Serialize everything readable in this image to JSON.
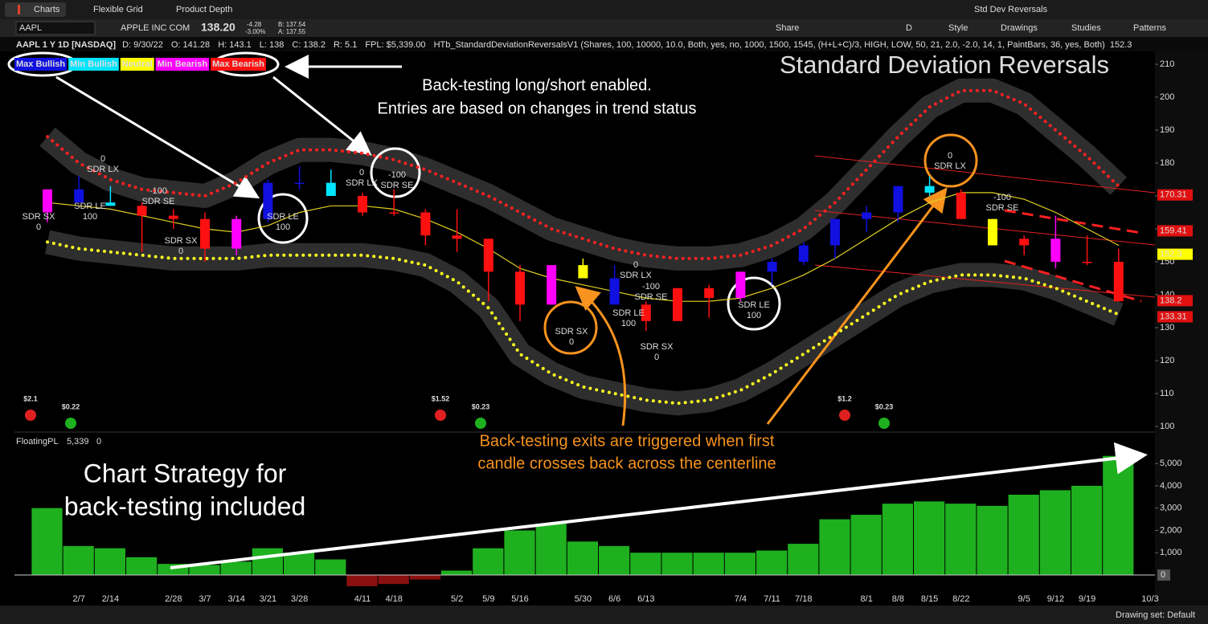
{
  "toolbar": {
    "tabs": [
      "Charts",
      "Flexible Grid",
      "Product Depth"
    ],
    "setup": "Std Dev Reversals",
    "symbol": "AAPL",
    "company": "APPLE INC COM",
    "last": "138.20",
    "change": "-4.28",
    "change_pct": "-3.00%",
    "bid": "B: 137.54",
    "ask": "A: 137.55",
    "aggregation": "D",
    "buttons": [
      "Share",
      "Style",
      "Drawings",
      "Studies",
      "Patterns"
    ]
  },
  "info": {
    "symbol": "AAPL 1 Y 1D [NASDAQ]",
    "fields": [
      "D: 9/30/22",
      "O: 141.28",
      "H: 143.1",
      "L: 138",
      "C: 138.2",
      "R: 5.1",
      "FPL: $5,339.00"
    ],
    "study": "HTb_StandardDeviationReversalsV1 (Shares, 100, 10000, 10.0, Both, yes, no, 1000, 1500, 1545, (H+L+C)/3, HIGH, LOW, 50, 21, 2.0, -2.0, 14, 1, PaintBars, 36, yes, Both)",
    "study_value": "152.3"
  },
  "legend": [
    {
      "name": "Max Bullish",
      "color": "#1010e0"
    },
    {
      "name": "Min Bullish",
      "color": "#00e5ff"
    },
    {
      "name": "Neutral",
      "color": "#ffff00"
    },
    {
      "name": "Min Bearish",
      "color": "#ff00ff"
    },
    {
      "name": "Max Bearish",
      "color": "#ff1010"
    }
  ],
  "annotations": {
    "title": "Standard Deviation Reversals",
    "entries": [
      "Back-testing long/short enabled.",
      "Entries are based on changes in trend status"
    ],
    "exits": [
      "Back-testing exits are triggered when first",
      "candle crosses back across the centerline"
    ],
    "strategy": [
      "Chart Strategy for",
      "back-testing included"
    ]
  },
  "signals": [
    {
      "lines": [
        "SDR SX",
        "0"
      ],
      "color": "#ffff40"
    },
    {
      "lines": [
        "0",
        "SDR LX"
      ],
      "color": "#ffff40"
    },
    {
      "lines": [
        "SDR LE",
        "100"
      ],
      "color": "#3050ff"
    },
    {
      "lines": [
        "-100",
        "SDR SE"
      ],
      "color": "#ff3030"
    },
    {
      "lines": [
        "SDR SX",
        "0"
      ],
      "color": "#ffff40"
    },
    {
      "lines": [
        "SDR LE",
        "100"
      ],
      "color": "#3050ff"
    },
    {
      "lines": [
        "0",
        "SDR LX"
      ],
      "color": "#ffff40"
    },
    {
      "lines": [
        "-100",
        "SDR SE"
      ],
      "color": "#ff3030"
    },
    {
      "lines": [
        "SDR SX",
        "0"
      ],
      "color": "#ffff40"
    },
    {
      "lines": [
        "0",
        "SDR LX"
      ],
      "color": "#ffff40"
    },
    {
      "lines": [
        "-100",
        "SDR SE"
      ],
      "color": "#ff3030"
    },
    {
      "lines": [
        "SDR LE",
        "100"
      ],
      "color": "#3050ff"
    },
    {
      "lines": [
        "SDR SX",
        "0"
      ],
      "color": "#ffff40"
    },
    {
      "lines": [
        "SDR LE",
        "100"
      ],
      "color": "#3050ff"
    },
    {
      "lines": [
        "0",
        "SDR LX"
      ],
      "color": "#ffff40"
    },
    {
      "lines": [
        "-100",
        "SDR SE"
      ],
      "color": "#ff3030"
    }
  ],
  "badges": [
    "$2.1",
    "$0.22",
    "$1.52",
    "$0.23",
    "$1.2",
    "$0.23"
  ],
  "chart_data": [
    {
      "type": "candlestick",
      "categories": [
        null,
        "2/7",
        "2/14",
        null,
        "2/28",
        "3/7",
        "3/14",
        "3/21",
        "3/28",
        null,
        "4/11",
        "4/18",
        null,
        "5/2",
        "5/9",
        "5/16",
        null,
        "5/30",
        "6/6",
        "6/13",
        null,
        null,
        "7/4",
        "7/11",
        "7/18",
        null,
        "8/1",
        "8/8",
        "8/15",
        "8/22",
        null,
        "9/5",
        "9/12",
        "9/19",
        null,
        "10/3"
      ],
      "open": [
        165,
        172,
        168,
        167,
        164,
        163,
        154,
        163,
        174,
        174,
        170,
        165,
        165,
        158,
        157,
        147,
        137,
        149,
        145,
        137,
        132,
        142,
        139,
        147,
        150,
        155,
        163,
        165,
        173,
        171,
        163,
        155,
        157,
        150,
        150,
        null
      ],
      "high": [
        172,
        176,
        173,
        168,
        166,
        165,
        164,
        175,
        179,
        178,
        171,
        172,
        166,
        166,
        157,
        149,
        149,
        151,
        149,
        138,
        142,
        143,
        147,
        151,
        156,
        163,
        167,
        173,
        176,
        172,
        163,
        158,
        164,
        158,
        154,
        null
      ],
      "low": [
        162,
        168,
        167,
        153,
        160,
        150,
        152,
        162,
        172,
        170,
        164,
        164,
        155,
        153,
        138,
        132,
        137,
        145,
        137,
        129,
        132,
        133,
        138,
        143,
        149,
        151,
        159,
        162,
        170,
        163,
        155,
        152,
        148,
        149,
        138,
        null
      ],
      "close": [
        172,
        168,
        167,
        164,
        163,
        154,
        163,
        174,
        174,
        170,
        165,
        165,
        158,
        157,
        147,
        137,
        149,
        145,
        137,
        132,
        142,
        139,
        147,
        150,
        155,
        163,
        165,
        173,
        171,
        163,
        155,
        157,
        150,
        150,
        138,
        null
      ],
      "candle_colors": [
        "#ff00ff",
        "#1010e0",
        "#00e5ff",
        "#ff1010",
        "#ff1010",
        "#ff1010",
        "#ff00ff",
        "#1010e0",
        "#1010e0",
        "#00e5ff",
        "#ff1010",
        "#ff1010",
        "#ff1010",
        "#ff1010",
        "#ff1010",
        "#ff1010",
        "#ff00ff",
        "#ffff00",
        "#1010e0",
        "#ff1010",
        "#ff1010",
        "#ff1010",
        "#ff00ff",
        "#1010e0",
        "#1010e0",
        "#1010e0",
        "#1010e0",
        "#1010e0",
        "#00e5ff",
        "#ff1010",
        "#ffff00",
        "#ff1010",
        "#ff00ff",
        "#ff1010",
        "#ff1010",
        null
      ],
      "series": [
        {
          "name": "upper",
          "color": "#ff2020",
          "values": [
            188,
            180,
            175,
            172,
            171,
            170,
            174,
            180,
            184,
            184,
            183,
            181,
            178,
            174,
            170,
            165,
            160,
            157,
            154,
            152,
            151,
            151,
            152,
            155,
            160,
            168,
            178,
            188,
            197,
            202,
            202,
            198,
            190,
            182,
            173,
            null
          ]
        },
        {
          "name": "lower",
          "color": "#ffff20",
          "values": [
            156,
            154,
            153,
            152,
            151,
            151,
            151,
            152,
            152,
            152,
            152,
            151,
            149,
            144,
            136,
            122,
            116,
            112,
            110,
            108,
            107,
            108,
            111,
            116,
            122,
            128,
            134,
            140,
            144,
            146,
            146,
            145,
            142,
            138,
            134,
            null
          ]
        },
        {
          "name": "mid",
          "color": "#e0d020",
          "values": [
            168,
            167,
            166,
            164,
            162,
            160,
            159,
            161,
            165,
            167,
            167,
            166,
            163,
            159,
            154,
            148,
            145,
            143,
            141,
            139,
            138,
            138,
            139,
            142,
            146,
            151,
            157,
            163,
            168,
            171,
            171,
            169,
            165,
            160,
            155,
            null
          ]
        }
      ],
      "price_tags": [
        {
          "value": 170.31,
          "color": "#e01010"
        },
        {
          "value": 159.41,
          "color": "#e01010"
        },
        {
          "value": 152.3,
          "color": "#ffff00"
        },
        {
          "value": 138.2,
          "color": "#e01010"
        },
        {
          "value": 133.31,
          "color": "#e01010"
        }
      ],
      "ylim": [
        98,
        215
      ],
      "yticks": [
        100,
        110,
        120,
        130,
        140,
        150,
        160,
        170,
        180,
        190,
        200,
        210
      ]
    },
    {
      "type": "bar",
      "name": "FloatingPL",
      "value_label": "5,339",
      "zero_tag": "0",
      "color": "#1fb01f",
      "negative_color": "#8b1010",
      "values": [
        3000,
        1300,
        1200,
        800,
        500,
        450,
        600,
        1200,
        1000,
        700,
        -500,
        -400,
        -200,
        200,
        1200,
        2000,
        2300,
        1500,
        1300,
        1000,
        1000,
        1000,
        1000,
        1100,
        1400,
        2500,
        2700,
        3200,
        3300,
        3200,
        3100,
        3600,
        3800,
        4000,
        5339,
        null
      ],
      "ylim": [
        -700,
        6300
      ],
      "yticks": [
        {
          "value": 1000,
          "label": "1,000"
        },
        {
          "value": 2000,
          "label": "2,000"
        },
        {
          "value": 3000,
          "label": "3,000"
        },
        {
          "value": 4000,
          "label": "4,000"
        },
        {
          "value": 5000,
          "label": "5,000"
        }
      ]
    }
  ],
  "footer": "Drawing set: Default"
}
